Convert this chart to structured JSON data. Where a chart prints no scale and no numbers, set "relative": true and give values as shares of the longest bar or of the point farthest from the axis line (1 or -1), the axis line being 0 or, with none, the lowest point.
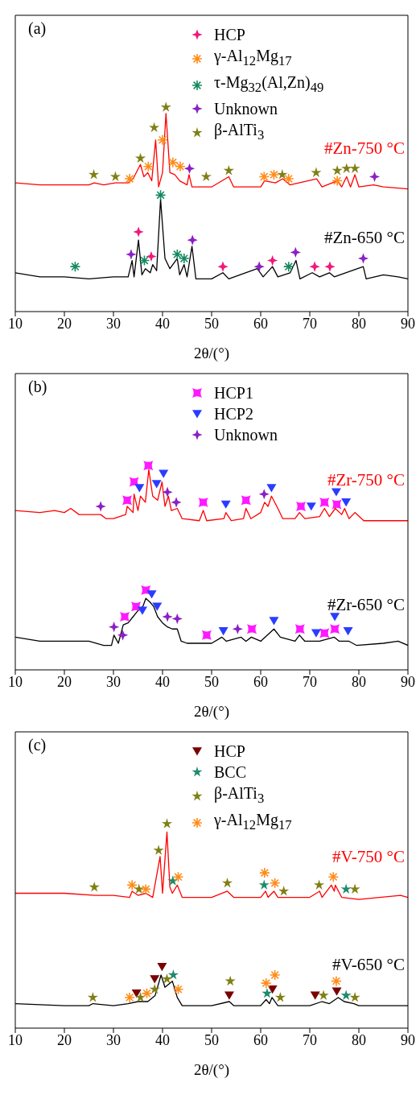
{
  "chart_data": [
    {
      "type": "line",
      "relative": true,
      "xlabel": "2θ/(°)",
      "xlim": [
        10,
        90
      ],
      "xticks": [
        10,
        20,
        30,
        40,
        50,
        60,
        70,
        80,
        90
      ],
      "annotations": [
        "(a)"
      ],
      "legend": "top",
      "series": [
        {
          "name": "#Zn-750 °C",
          "color": "#ff0000",
          "x": [
            10,
            15,
            20,
            25,
            26.1,
            28,
            30.4,
            33,
            34,
            35.5,
            36.2,
            37,
            37.8,
            38.6,
            39.2,
            40,
            40.7,
            41.5,
            42.5,
            43.5,
            45,
            45.4,
            46,
            50,
            53.5,
            54.5,
            60,
            60.8,
            63,
            64.5,
            66,
            71.4,
            72.5,
            75.6,
            76.5,
            77.5,
            78.3,
            79.2,
            80,
            83,
            85,
            90
          ],
          "values": [
            0.63,
            0.62,
            0.62,
            0.62,
            0.63,
            0.62,
            0.63,
            0.63,
            0.65,
            0.72,
            0.66,
            0.68,
            0.64,
            0.84,
            0.61,
            0.68,
            0.97,
            0.68,
            0.67,
            0.64,
            0.62,
            0.67,
            0.61,
            0.61,
            0.66,
            0.61,
            0.61,
            0.64,
            0.63,
            0.65,
            0.62,
            0.65,
            0.61,
            0.64,
            0.61,
            0.66,
            0.61,
            0.67,
            0.61,
            0.62,
            0.61,
            0.6
          ]
        },
        {
          "name": "#Zn-650 °C",
          "color": "#000000",
          "x": [
            10,
            15,
            20,
            25,
            30,
            33,
            33.8,
            34.2,
            35.1,
            35.8,
            36.5,
            37.5,
            38,
            38.8,
            39.6,
            40.5,
            41.5,
            43,
            43.5,
            44.4,
            45,
            46,
            46.8,
            50,
            52.3,
            53.5,
            59.3,
            60.5,
            62.4,
            63.5,
            66,
            67.2,
            68,
            70.5,
            72,
            74,
            75,
            80.9,
            81.5,
            85,
            88,
            90
          ],
          "values": [
            0.19,
            0.17,
            0.17,
            0.16,
            0.17,
            0.17,
            0.25,
            0.17,
            0.35,
            0.18,
            0.21,
            0.19,
            0.23,
            0.2,
            0.55,
            0.26,
            0.21,
            0.26,
            0.18,
            0.23,
            0.17,
            0.32,
            0.16,
            0.16,
            0.19,
            0.16,
            0.21,
            0.17,
            0.22,
            0.17,
            0.19,
            0.25,
            0.16,
            0.19,
            0.17,
            0.19,
            0.17,
            0.22,
            0.16,
            0.18,
            0.17,
            0.16
          ]
        },
        {
          "type": "scatter",
          "name": "HCP",
          "color": "#f0197a",
          "marker": "diamond",
          "x": [
            35.1,
            37.7,
            52.3,
            62.4,
            71,
            74.1
          ],
          "values": [
            0.39,
            0.27,
            0.22,
            0.25,
            0.22,
            0.22
          ]
        },
        {
          "type": "scatter",
          "name": "γ-Al$_{12}$Mg$_{17}$",
          "color": "#ff8c1a",
          "marker": "cross",
          "x": [
            33.3,
            37.1,
            40,
            42.1,
            43.6,
            60.7,
            62.7,
            65.7,
            75.6
          ],
          "values": [
            0.65,
            0.71,
            0.84,
            0.73,
            0.71,
            0.66,
            0.67,
            0.65,
            0.64
          ]
        },
        {
          "type": "scatter",
          "name": "τ-Mg$_{32}$(Al,Zn)$_{49}$",
          "color": "#138a5e",
          "marker": "cross",
          "x": [
            22.2,
            36.3,
            39.6,
            43,
            44.4,
            65.7
          ],
          "values": [
            0.22,
            0.25,
            0.57,
            0.28,
            0.26,
            0.22
          ]
        },
        {
          "type": "scatter",
          "name": "Unknown",
          "color": "#8b1fc4",
          "marker": "diamond",
          "x": [
            33.6,
            45.5,
            46.1,
            59.7,
            67.1,
            80.9,
            83.2
          ],
          "values": [
            0.28,
            0.7,
            0.35,
            0.22,
            0.29,
            0.26,
            0.66
          ]
        },
        {
          "type": "scatter",
          "name": "β-AlTi$_{3}$",
          "color": "#7f7f14",
          "marker": "star",
          "x": [
            26,
            30.4,
            35.5,
            38.3,
            40.7,
            48.9,
            53.5,
            64.4,
            71.3,
            75.6,
            77.5,
            79.2
          ],
          "values": [
            0.67,
            0.66,
            0.75,
            0.9,
            1,
            0.66,
            0.69,
            0.67,
            0.68,
            0.69,
            0.7,
            0.7
          ]
        }
      ]
    },
    {
      "type": "line",
      "relative": true,
      "xlabel": "2θ/(°)",
      "xlim": [
        10,
        90
      ],
      "xticks": [
        10,
        20,
        30,
        40,
        50,
        60,
        70,
        80,
        90
      ],
      "annotations": [
        "(b)"
      ],
      "legend": "top",
      "series": [
        {
          "name": "#Zr-750 °C",
          "color": "#ff0000",
          "x": [
            10,
            15,
            18,
            20,
            21.3,
            23,
            25,
            27,
            27.4,
            28.5,
            30,
            32.5,
            32.8,
            34,
            34.2,
            35,
            35.5,
            36.5,
            37.2,
            38,
            39,
            39.9,
            40.5,
            41.2,
            41.8,
            43,
            44,
            47.5,
            48.3,
            49,
            52.5,
            52.9,
            54,
            56.5,
            57,
            58,
            60,
            60.8,
            61.5,
            62.2,
            63.5,
            64.5,
            67,
            67.9,
            69,
            72,
            73,
            74,
            75.2,
            76.5,
            77.1,
            78,
            79.2,
            81,
            85,
            90
          ],
          "values": [
            0.78,
            0.77,
            0.78,
            0.77,
            0.79,
            0.76,
            0.76,
            0.76,
            0.76,
            0.74,
            0.74,
            0.76,
            0.8,
            0.77,
            0.86,
            0.78,
            0.85,
            0.82,
            0.98,
            0.85,
            0.83,
            0.92,
            0.8,
            0.85,
            0.78,
            0.79,
            0.74,
            0.73,
            0.78,
            0.73,
            0.74,
            0.77,
            0.73,
            0.74,
            0.79,
            0.74,
            0.77,
            0.82,
            0.8,
            0.85,
            0.79,
            0.74,
            0.74,
            0.77,
            0.74,
            0.75,
            0.79,
            0.75,
            0.79,
            0.76,
            0.79,
            0.74,
            0.77,
            0.73,
            0.73,
            0.73
          ]
        },
        {
          "name": "#Zr-650 °C",
          "color": "#000000",
          "x": [
            10,
            15,
            20,
            25,
            28,
            29.6,
            30.1,
            31,
            32,
            33,
            34,
            35,
            36,
            36.6,
            37.5,
            38.2,
            39,
            40,
            41,
            42,
            43,
            43.8,
            45,
            50,
            52.1,
            53,
            56,
            57,
            58.1,
            60,
            62.7,
            64,
            67,
            67.9,
            69,
            72,
            75,
            76,
            78,
            79.5,
            85,
            88,
            90
          ],
          "values": [
            0.16,
            0.14,
            0.14,
            0.14,
            0.12,
            0.12,
            0.17,
            0.13,
            0.22,
            0.23,
            0.26,
            0.29,
            0.31,
            0.35,
            0.33,
            0.31,
            0.26,
            0.23,
            0.21,
            0.2,
            0.2,
            0.14,
            0.13,
            0.13,
            0.16,
            0.14,
            0.16,
            0.14,
            0.16,
            0.14,
            0.2,
            0.16,
            0.14,
            0.17,
            0.14,
            0.14,
            0.16,
            0.14,
            0.14,
            0.12,
            0.13,
            0.14,
            0.12
          ]
        },
        {
          "type": "scatter",
          "name": "HCP1",
          "color": "#ff19ff",
          "marker": "square",
          "x": [
            32.8,
            34.2,
            37.1,
            48.3,
            57,
            68.2,
            73,
            75.5,
            32.3,
            34.6,
            36.6,
            49,
            58.2,
            68,
            73,
            75.1
          ],
          "values": [
            0.83,
            0.92,
            1,
            0.82,
            0.83,
            0.8,
            0.82,
            0.81,
            0.26,
            0.31,
            0.39,
            0.17,
            0.2,
            0.2,
            0.18,
            0.2
          ]
        },
        {
          "type": "scatter",
          "name": "HCP2",
          "color": "#2a3cff",
          "marker": "triangle",
          "x": [
            35.3,
            38.8,
            40.2,
            52.9,
            62.2,
            70.3,
            75.4,
            77.4,
            35.9,
            37.8,
            38.9,
            52.4,
            62.7,
            71.3,
            75.1,
            77.8
          ],
          "values": [
            0.89,
            0.91,
            0.96,
            0.81,
            0.89,
            0.8,
            0.87,
            0.82,
            0.29,
            0.37,
            0.31,
            0.19,
            0.24,
            0.18,
            0.26,
            0.19
          ]
        },
        {
          "type": "scatter",
          "name": "Unknown",
          "color": "#8b1fc4",
          "marker": "diamond",
          "x": [
            27.4,
            41,
            42.8,
            60.7,
            30.1,
            31.9,
            41,
            43,
            55.3
          ],
          "values": [
            0.8,
            0.87,
            0.82,
            0.86,
            0.21,
            0.17,
            0.26,
            0.25,
            0.2
          ]
        }
      ]
    },
    {
      "type": "line",
      "relative": true,
      "xlabel": "2θ/(°)",
      "xlim": [
        10,
        90
      ],
      "xticks": [
        10,
        20,
        30,
        40,
        50,
        60,
        70,
        80,
        90
      ],
      "annotations": [
        "(c)"
      ],
      "legend": "top",
      "series": [
        {
          "name": "#V-750 °C",
          "color": "#ff0000",
          "x": [
            10,
            20,
            26.3,
            30,
            33.3,
            33.8,
            35,
            36.6,
            38,
            39.5,
            40,
            40.9,
            41.5,
            42,
            43,
            44,
            50,
            53.2,
            54.5,
            60,
            61,
            61.5,
            62.7,
            63.5,
            70,
            72,
            72.5,
            74.4,
            75,
            75.2,
            76.5,
            80,
            88.5,
            90
          ],
          "values": [
            0.66,
            0.66,
            0.65,
            0.65,
            0.64,
            0.67,
            0.65,
            0.66,
            0.64,
            0.84,
            0.66,
            0.96,
            0.69,
            0.66,
            0.7,
            0.64,
            0.64,
            0.67,
            0.64,
            0.64,
            0.67,
            0.64,
            0.67,
            0.64,
            0.64,
            0.67,
            0.64,
            0.7,
            0.67,
            0.7,
            0.64,
            0.63,
            0.65,
            0.64
          ]
        },
        {
          "name": "#V-650 °C",
          "color": "#000000",
          "x": [
            10,
            20,
            25,
            25.8,
            30,
            33,
            35,
            37,
            38.5,
            39.7,
            40.5,
            41.5,
            42,
            43,
            44,
            50,
            53.6,
            54.5,
            60,
            61.1,
            61.8,
            62.3,
            63.5,
            70,
            72.5,
            74,
            75.8,
            77,
            79,
            80,
            90
          ],
          "values": [
            0.12,
            0.11,
            0.11,
            0.12,
            0.11,
            0.12,
            0.13,
            0.13,
            0.16,
            0.26,
            0.2,
            0.22,
            0.23,
            0.15,
            0.11,
            0.11,
            0.13,
            0.11,
            0.11,
            0.14,
            0.12,
            0.15,
            0.11,
            0.11,
            0.13,
            0.12,
            0.15,
            0.13,
            0.12,
            0.11,
            0.11
          ]
        },
        {
          "type": "scatter",
          "name": "HCP",
          "color": "#7a0000",
          "marker": "triangle",
          "x": [
            34.7,
            38.4,
            39.9,
            53.6,
            62.4,
            71.1,
            75.5
          ],
          "values": [
            0.17,
            0.24,
            0.3,
            0.16,
            0.19,
            0.16,
            0.18
          ]
        },
        {
          "type": "scatter",
          "name": "BCC",
          "color": "#1d8a6c",
          "marker": "star",
          "x": [
            42.1,
            60.7,
            77.4,
            42.2,
            61.3,
            77.4
          ],
          "values": [
            0.72,
            0.7,
            0.68,
            0.26,
            0.17,
            0.16
          ]
        },
        {
          "type": "scatter",
          "name": "β-AlTi$_{3}$",
          "color": "#7f7f14",
          "marker": "star",
          "x": [
            26.1,
            35.2,
            39.2,
            40.9,
            53.2,
            64.7,
            71.9,
            79.2,
            25.8,
            35.5,
            38.4,
            40.9,
            53.8,
            64,
            72.8,
            79.2
          ],
          "values": [
            0.69,
            0.68,
            0.87,
            1,
            0.71,
            0.67,
            0.7,
            0.68,
            0.15,
            0.15,
            0.19,
            0.24,
            0.23,
            0.15,
            0.16,
            0.15
          ]
        },
        {
          "type": "scatter",
          "name": "γ-Al$_{12}$Mg$_{17}$",
          "color": "#ff8c1a",
          "marker": "cross",
          "x": [
            33.8,
            36.6,
            43.2,
            60.8,
            62.9,
            74.8,
            33.3,
            36.8,
            43.2,
            61.1,
            62.9,
            75.4
          ],
          "values": [
            0.7,
            0.68,
            0.74,
            0.76,
            0.71,
            0.74,
            0.15,
            0.17,
            0.19,
            0.22,
            0.26,
            0.23
          ]
        }
      ]
    }
  ]
}
